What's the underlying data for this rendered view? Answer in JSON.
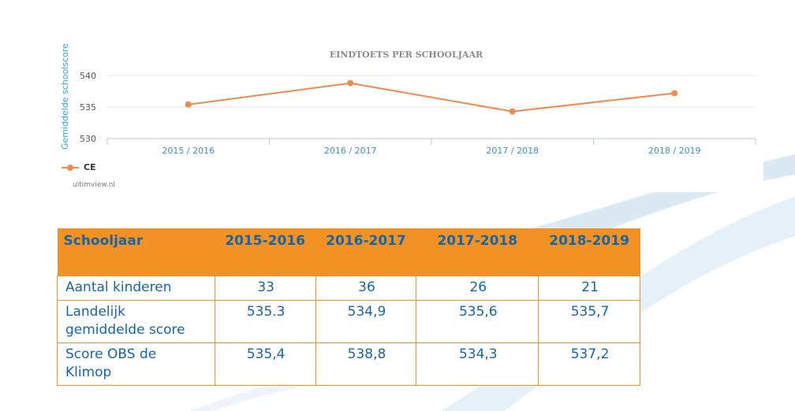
{
  "chart_data": {
    "type": "line",
    "title": "EINDTOETS PER SCHOOLJAAR",
    "ylabel": "Gemiddelde schoolscore",
    "xlabel": "",
    "categories": [
      "2015 / 2016",
      "2016 / 2017",
      "2017 / 2018",
      "2018 / 2019"
    ],
    "yticks": [
      530,
      535,
      540
    ],
    "ylim": [
      530,
      540.5
    ],
    "grid": true,
    "legend": "bottom-left",
    "series": [
      {
        "name": "CE",
        "values": [
          535.4,
          538.8,
          534.3,
          537.2
        ],
        "color": "#ee8a4e"
      }
    ],
    "credit": "ultimview.nl"
  },
  "table": {
    "headers": [
      "Schooljaar",
      "2015-2016",
      "2016-2017",
      "2017-2018",
      "2018-2019"
    ],
    "rows": [
      {
        "label": [
          "Aantal kinderen"
        ],
        "values": [
          "33",
          "36",
          "26",
          "21"
        ]
      },
      {
        "label": [
          "Landelijk",
          "gemiddelde score"
        ],
        "values": [
          "535.3",
          "534,9",
          "535,6",
          "535,7"
        ]
      },
      {
        "label": [
          "Score OBS de",
          "Klimop"
        ],
        "values": [
          "535,4",
          "538,8",
          "534,3",
          "537,2"
        ]
      }
    ]
  },
  "colors": {
    "header_bg": "#f39224",
    "text": "#1565a8",
    "line": "#ee8a4e",
    "axis_label": "#3a9fd6"
  }
}
